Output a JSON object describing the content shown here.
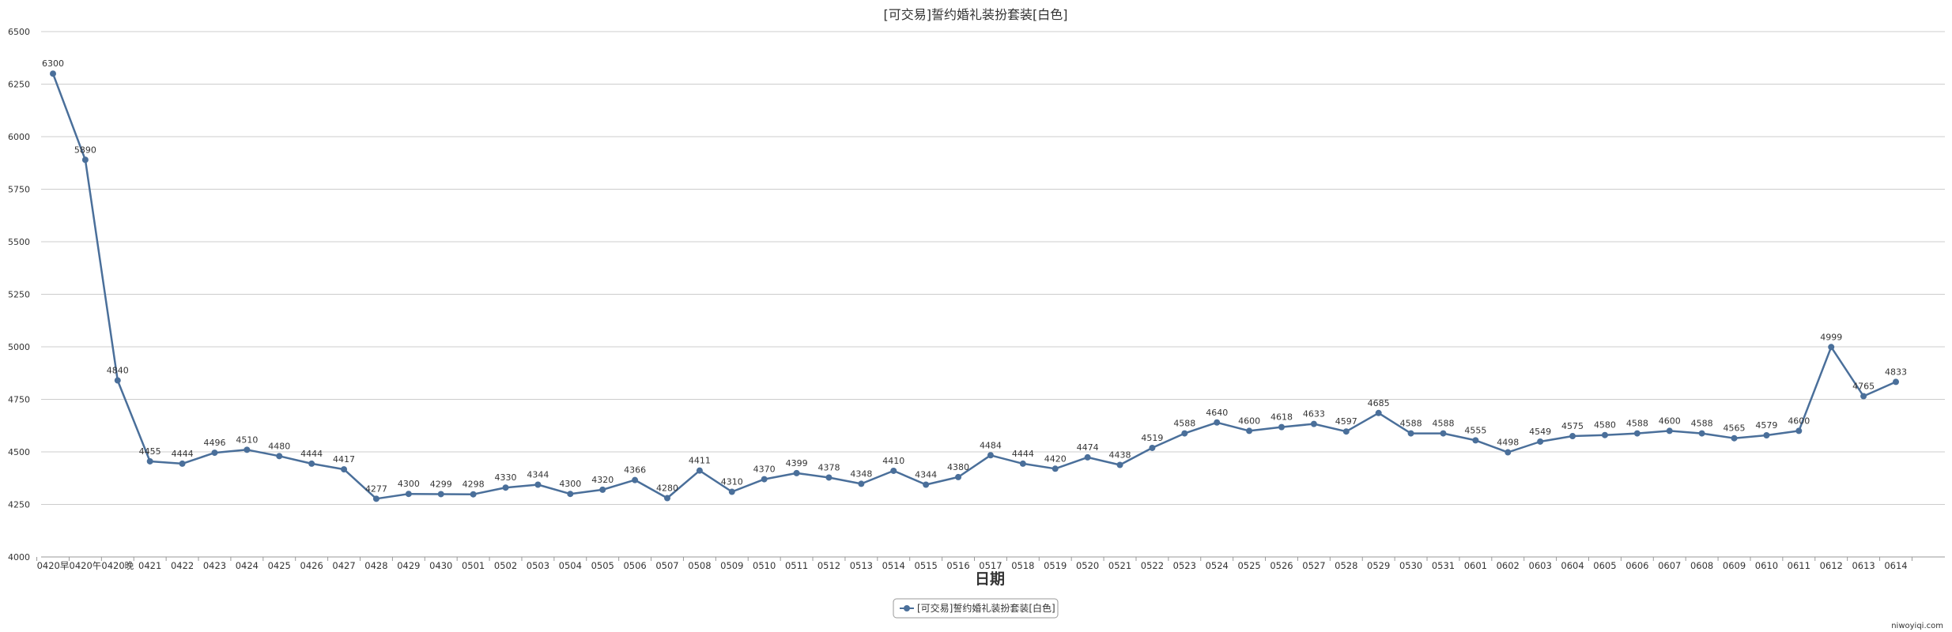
{
  "chart_data": {
    "type": "line",
    "title": "[可交易]誓约婚礼装扮套装[白色]",
    "xlabel": "日期",
    "ylabel": "",
    "ylim": [
      4000,
      6500
    ],
    "yticks": [
      4000,
      4250,
      4500,
      4750,
      5000,
      5250,
      5500,
      5750,
      6000,
      6250,
      6500
    ],
    "grid": true,
    "legend_position": "bottom-center",
    "categories": [
      "0420早",
      "0420午",
      "0420晚",
      "0421",
      "0422",
      "0423",
      "0424",
      "0425",
      "0426",
      "0427",
      "0428",
      "0429",
      "0430",
      "0501",
      "0502",
      "0503",
      "0504",
      "0505",
      "0506",
      "0507",
      "0508",
      "0509",
      "0510",
      "0511",
      "0512",
      "0513",
      "0514",
      "0515",
      "0516",
      "0517",
      "0518",
      "0519",
      "0520",
      "0521",
      "0522",
      "0523",
      "0524",
      "0525",
      "0526",
      "0527",
      "0528",
      "0529",
      "0530",
      "0531",
      "0601",
      "0602",
      "0603",
      "0604",
      "0605",
      "0606",
      "0607",
      "0608",
      "0609",
      "0610",
      "0611",
      "0612",
      "0613",
      "0614"
    ],
    "series": [
      {
        "name": "[可交易]誓约婚礼装扮套装[白色]",
        "color": "#4a6f9a",
        "values": [
          6300,
          5890,
          4840,
          4455,
          4444,
          4496,
          4510,
          4480,
          4444,
          4417,
          4277,
          4300,
          4299,
          4298,
          4330,
          4344,
          4300,
          4320,
          4366,
          4280,
          4411,
          4310,
          4370,
          4399,
          4378,
          4348,
          4410,
          4344,
          4380,
          4484,
          4444,
          4420,
          4474,
          4438,
          4519,
          4588,
          4640,
          4600,
          4618,
          4633,
          4597,
          4685,
          4588,
          4588,
          4555,
          4498,
          4549,
          4575,
          4580,
          4588,
          4600,
          4588,
          4565,
          4579,
          4600,
          4999,
          4765,
          4833
        ]
      }
    ]
  },
  "watermark": "niwoyiqi.com"
}
